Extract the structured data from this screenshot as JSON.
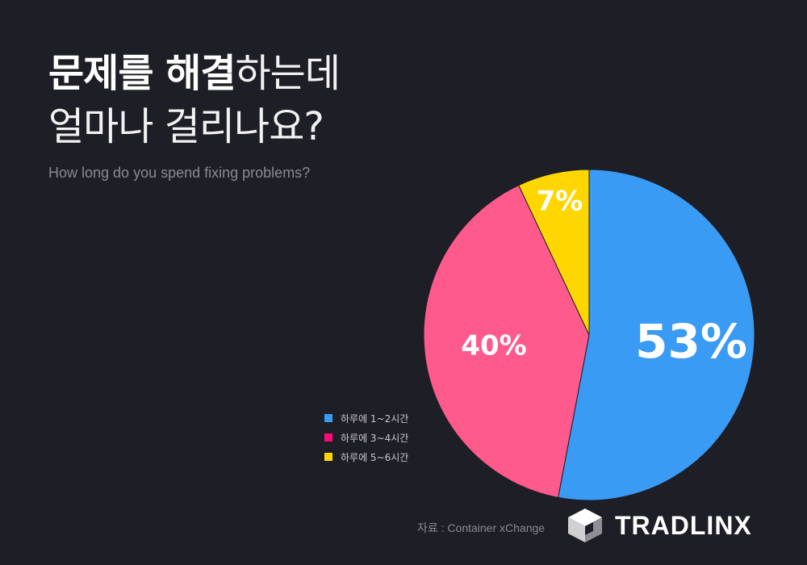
{
  "title": {
    "line1_bold": "문제를 해결",
    "line1_light": "하는데",
    "line2": "얼마나 걸리나요?"
  },
  "subtitle": "How long do you spend fixing problems?",
  "source": "자료 : Container xChange",
  "brand": {
    "name": "TRADLINX",
    "icon": "cube-logo-icon"
  },
  "chart_data": {
    "type": "pie",
    "title": "",
    "legend_position": "bottom-left",
    "slices": [
      {
        "label": "하루에 1~2시간",
        "value": 53,
        "display": "53%",
        "color": "#3a9bf5"
      },
      {
        "label": "하루에 3~4시간",
        "value": 40,
        "display": "40%",
        "color": "#ff5a8c"
      },
      {
        "label": "하루에 5~6시간",
        "value": 7,
        "display": "7%",
        "color": "#ffd600"
      }
    ],
    "legend_swatch_colors": [
      "#3a9bf5",
      "#ff0a78",
      "#ffd600"
    ]
  }
}
